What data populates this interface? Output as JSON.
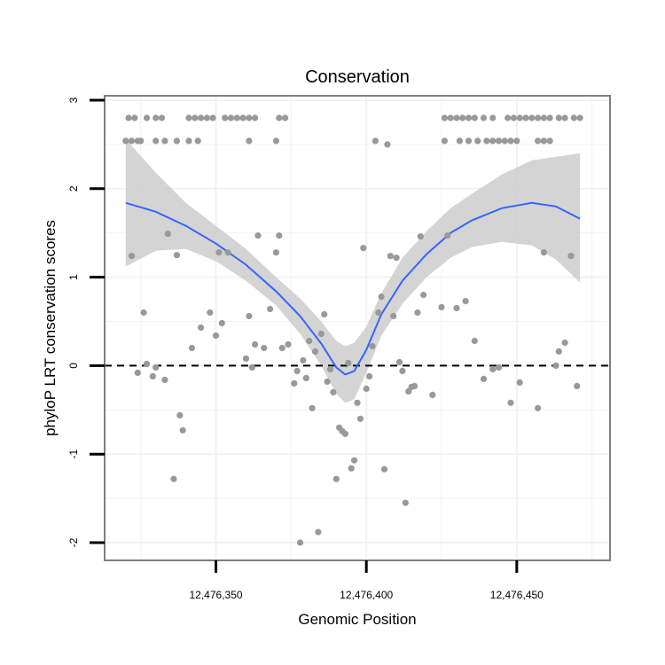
{
  "chart_data": {
    "type": "scatter",
    "title": "Conservation",
    "xlabel": "Genomic Position",
    "ylabel": "phyloP LRT conservation scores",
    "xlim": [
      12476313,
      12476481
    ],
    "ylim": [
      -2.2,
      3.05
    ],
    "x_ticks": [
      {
        "value": 12476350,
        "label": "12,476,350"
      },
      {
        "value": 12476400,
        "label": "12,476,400"
      },
      {
        "value": 12476450,
        "label": "12,476,450"
      }
    ],
    "y_ticks": [
      {
        "value": -2,
        "label": "-2"
      },
      {
        "value": -1,
        "label": "-1"
      },
      {
        "value": 0,
        "label": "0"
      },
      {
        "value": 1,
        "label": "1"
      },
      {
        "value": 2,
        "label": "2"
      },
      {
        "value": 3,
        "label": "3"
      }
    ],
    "grid": true,
    "reference_line": {
      "y": 0,
      "style": "dashed"
    },
    "colors": {
      "points": "#999999",
      "smooth": "#3366ff",
      "band": "#cccccc",
      "frame": "#7f7f7f",
      "grid": "#f2f2f2"
    },
    "points": [
      [
        12476321,
        2.8
      ],
      [
        12476323,
        2.8
      ],
      [
        12476327,
        2.8
      ],
      [
        12476330,
        2.8
      ],
      [
        12476332,
        2.8
      ],
      [
        12476341,
        2.8
      ],
      [
        12476343,
        2.8
      ],
      [
        12476345,
        2.8
      ],
      [
        12476347,
        2.8
      ],
      [
        12476349,
        2.8
      ],
      [
        12476353,
        2.8
      ],
      [
        12476355,
        2.8
      ],
      [
        12476357,
        2.8
      ],
      [
        12476359,
        2.8
      ],
      [
        12476361,
        2.8
      ],
      [
        12476363,
        2.8
      ],
      [
        12476371,
        2.8
      ],
      [
        12476373,
        2.8
      ],
      [
        12476320,
        2.54
      ],
      [
        12476322,
        2.54
      ],
      [
        12476324,
        2.54
      ],
      [
        12476325,
        2.54
      ],
      [
        12476330,
        2.54
      ],
      [
        12476333,
        2.54
      ],
      [
        12476337,
        2.54
      ],
      [
        12476341,
        2.54
      ],
      [
        12476344,
        2.54
      ],
      [
        12476361,
        2.54
      ],
      [
        12476370,
        2.54
      ],
      [
        12476403,
        2.54
      ],
      [
        12476407,
        2.5
      ],
      [
        12476426,
        2.8
      ],
      [
        12476428,
        2.8
      ],
      [
        12476430,
        2.8
      ],
      [
        12476432,
        2.8
      ],
      [
        12476434,
        2.8
      ],
      [
        12476436,
        2.8
      ],
      [
        12476439,
        2.8
      ],
      [
        12476442,
        2.8
      ],
      [
        12476447,
        2.8
      ],
      [
        12476449,
        2.8
      ],
      [
        12476451,
        2.8
      ],
      [
        12476453,
        2.8
      ],
      [
        12476455,
        2.8
      ],
      [
        12476457,
        2.8
      ],
      [
        12476459,
        2.8
      ],
      [
        12476461,
        2.8
      ],
      [
        12476464,
        2.8
      ],
      [
        12476466,
        2.8
      ],
      [
        12476469,
        2.8
      ],
      [
        12476471,
        2.8
      ],
      [
        12476426,
        2.54
      ],
      [
        12476431,
        2.54
      ],
      [
        12476434,
        2.54
      ],
      [
        12476437,
        2.54
      ],
      [
        12476440,
        2.54
      ],
      [
        12476442,
        2.54
      ],
      [
        12476444,
        2.54
      ],
      [
        12476446,
        2.54
      ],
      [
        12476448,
        2.54
      ],
      [
        12476450,
        2.54
      ],
      [
        12476457,
        2.54
      ],
      [
        12476459,
        2.54
      ],
      [
        12476461,
        2.54
      ],
      [
        12476322,
        1.24
      ],
      [
        12476326,
        0.6
      ],
      [
        12476324,
        -0.08
      ],
      [
        12476327,
        0.02
      ],
      [
        12476329,
        -0.12
      ],
      [
        12476330,
        -0.02
      ],
      [
        12476333,
        -0.16
      ],
      [
        12476334,
        1.49
      ],
      [
        12476336,
        -1.28
      ],
      [
        12476337,
        1.25
      ],
      [
        12476338,
        -0.56
      ],
      [
        12476339,
        -0.73
      ],
      [
        12476342,
        0.2
      ],
      [
        12476345,
        0.43
      ],
      [
        12476348,
        0.6
      ],
      [
        12476350,
        0.34
      ],
      [
        12476351,
        1.28
      ],
      [
        12476352,
        0.48
      ],
      [
        12476354,
        1.28
      ],
      [
        12476360,
        0.08
      ],
      [
        12476361,
        0.56
      ],
      [
        12476362,
        -0.02
      ],
      [
        12476363,
        0.24
      ],
      [
        12476364,
        1.47
      ],
      [
        12476366,
        0.2
      ],
      [
        12476368,
        0.64
      ],
      [
        12476370,
        1.28
      ],
      [
        12476371,
        1.47
      ],
      [
        12476372,
        0.2
      ],
      [
        12476374,
        0.24
      ],
      [
        12476376,
        -0.2
      ],
      [
        12476377,
        -0.06
      ],
      [
        12476378,
        -2.0
      ],
      [
        12476379,
        0.06
      ],
      [
        12476380,
        -0.14
      ],
      [
        12476381,
        0.28
      ],
      [
        12476382,
        -0.48
      ],
      [
        12476383,
        0.16
      ],
      [
        12476384,
        -1.88
      ],
      [
        12476385,
        0.36
      ],
      [
        12476386,
        0.58
      ],
      [
        12476387,
        -0.18
      ],
      [
        12476388,
        -0.04
      ],
      [
        12476389,
        -0.3
      ],
      [
        12476390,
        -1.28
      ],
      [
        12476391,
        -0.7
      ],
      [
        12476392,
        -0.74
      ],
      [
        12476393,
        -0.77
      ],
      [
        12476394,
        0.03
      ],
      [
        12476395,
        -1.16
      ],
      [
        12476396,
        -1.07
      ],
      [
        12476397,
        -0.42
      ],
      [
        12476398,
        -0.6
      ],
      [
        12476399,
        1.33
      ],
      [
        12476400,
        -0.26
      ],
      [
        12476401,
        -0.12
      ],
      [
        12476402,
        0.22
      ],
      [
        12476404,
        0.6
      ],
      [
        12476405,
        0.78
      ],
      [
        12476406,
        -1.17
      ],
      [
        12476408,
        1.24
      ],
      [
        12476409,
        0.56
      ],
      [
        12476410,
        1.22
      ],
      [
        12476411,
        0.04
      ],
      [
        12476412,
        -0.06
      ],
      [
        12476413,
        -1.55
      ],
      [
        12476414,
        -0.29
      ],
      [
        12476415,
        -0.24
      ],
      [
        12476416,
        -0.23
      ],
      [
        12476417,
        0.6
      ],
      [
        12476418,
        1.46
      ],
      [
        12476419,
        0.8
      ],
      [
        12476422,
        -0.33
      ],
      [
        12476425,
        0.66
      ],
      [
        12476427,
        1.47
      ],
      [
        12476430,
        0.65
      ],
      [
        12476433,
        0.73
      ],
      [
        12476436,
        0.28
      ],
      [
        12476439,
        -0.15
      ],
      [
        12476442,
        -0.04
      ],
      [
        12476444,
        -0.02
      ],
      [
        12476448,
        -0.42
      ],
      [
        12476451,
        -0.19
      ],
      [
        12476457,
        -0.48
      ],
      [
        12476459,
        1.28
      ],
      [
        12476463,
        0.0
      ],
      [
        12476464,
        0.16
      ],
      [
        12476466,
        0.26
      ],
      [
        12476468,
        1.24
      ],
      [
        12476470,
        -0.23
      ]
    ],
    "smooth": {
      "x": [
        12476320,
        12476330,
        12476340,
        12476350,
        12476360,
        12476370,
        12476378,
        12476385,
        12476390,
        12476393,
        12476396,
        12476400,
        12476405,
        12476412,
        12476420,
        12476428,
        12476435,
        12476445,
        12476455,
        12476463,
        12476471
      ],
      "y": [
        1.84,
        1.74,
        1.58,
        1.38,
        1.14,
        0.84,
        0.56,
        0.25,
        -0.02,
        -0.1,
        -0.06,
        0.18,
        0.58,
        0.96,
        1.26,
        1.5,
        1.64,
        1.78,
        1.84,
        1.8,
        1.66
      ],
      "lower": [
        1.12,
        1.3,
        1.32,
        1.18,
        0.96,
        0.68,
        0.36,
        0.0,
        -0.32,
        -0.42,
        -0.38,
        -0.08,
        0.34,
        0.7,
        1.0,
        1.22,
        1.34,
        1.4,
        1.36,
        1.2,
        0.94
      ],
      "upper": [
        2.56,
        2.18,
        1.84,
        1.58,
        1.32,
        1.0,
        0.76,
        0.5,
        0.28,
        0.22,
        0.26,
        0.44,
        0.82,
        1.22,
        1.52,
        1.78,
        1.94,
        2.16,
        2.32,
        2.36,
        2.4
      ]
    }
  }
}
